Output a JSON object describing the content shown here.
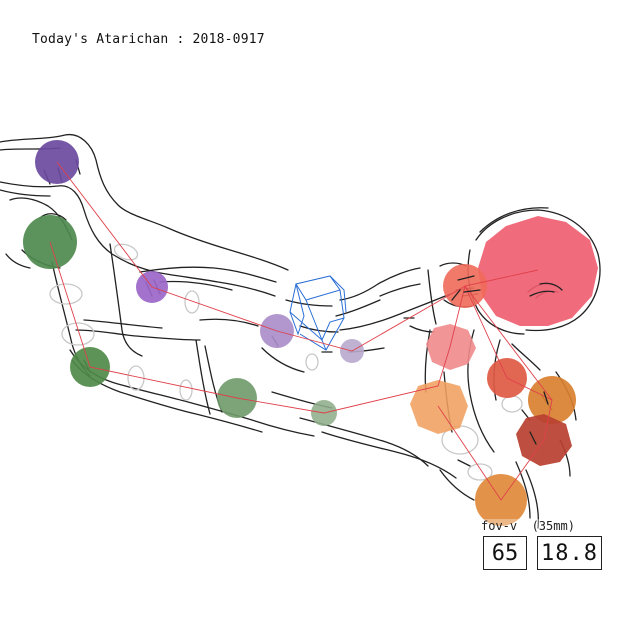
{
  "header": {
    "title": "Today's Atarichan : 2018-0917"
  },
  "camera": {
    "fov_label": "fov-v",
    "lens_label": "(35mm)",
    "fov_degrees": "65",
    "focal_length": "18.8"
  },
  "colors": {
    "background": "#ffffff",
    "sketch_line": "#222222",
    "skeleton_line": "#e0404a",
    "camera_gizmo": "#2a6fd6",
    "ghost_ellipse": "#c8c8c8"
  },
  "joints": [
    {
      "name": "joint-left-hand-purple",
      "color": "#6a4a9e"
    },
    {
      "name": "joint-right-hand-green",
      "color": "#4e8a4e"
    },
    {
      "name": "joint-left-elbow-purple",
      "color": "#9a66c8"
    },
    {
      "name": "joint-left-shoulder-purple",
      "color": "#a88cc8"
    },
    {
      "name": "joint-right-elbow-green",
      "color": "#4f8a48"
    },
    {
      "name": "joint-right-shoulder-green",
      "color": "#6f9a6a"
    },
    {
      "name": "joint-neck-lavender",
      "color": "#b8a8cc"
    },
    {
      "name": "joint-chest-sage",
      "color": "#8fae8a"
    },
    {
      "name": "joint-head-pink",
      "color": "#ee5c6e"
    },
    {
      "name": "joint-upper-spine-salmon",
      "color": "#f06a5a"
    },
    {
      "name": "joint-mid-spine-rose",
      "color": "#f08a8c"
    },
    {
      "name": "joint-waist-orange",
      "color": "#f0a060"
    },
    {
      "name": "joint-right-hip-red",
      "color": "#e05a44"
    },
    {
      "name": "joint-left-hip-amber",
      "color": "#d88030"
    },
    {
      "name": "joint-pelvis-brown",
      "color": "#b84030"
    },
    {
      "name": "joint-foot-orange",
      "color": "#e08a3a"
    }
  ]
}
